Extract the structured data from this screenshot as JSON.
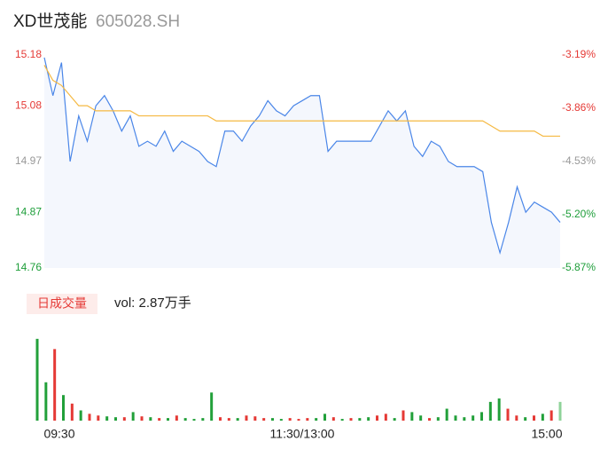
{
  "chart_data": [
    {
      "type": "line",
      "title": "XD世茂能",
      "subtitle": "605028.SH",
      "categories": [
        "09:30",
        null,
        null,
        null,
        null,
        null,
        null,
        null,
        null,
        null,
        null,
        null,
        null,
        null,
        null,
        null,
        null,
        null,
        null,
        null,
        null,
        null,
        null,
        null,
        null,
        null,
        null,
        null,
        null,
        null,
        "11:30/13:00",
        null,
        null,
        null,
        null,
        null,
        null,
        null,
        null,
        null,
        null,
        null,
        null,
        null,
        null,
        null,
        null,
        null,
        null,
        null,
        null,
        null,
        null,
        null,
        null,
        null,
        null,
        null,
        null,
        null,
        "15:00"
      ],
      "series": [
        {
          "name": "price",
          "color": "#4a86e8",
          "values": [
            15.175,
            15.1,
            15.165,
            14.97,
            15.06,
            15.01,
            15.08,
            15.1,
            15.07,
            15.03,
            15.06,
            15.0,
            15.01,
            15.0,
            15.03,
            14.99,
            15.01,
            15.0,
            14.99,
            14.97,
            14.96,
            15.03,
            15.03,
            15.01,
            15.04,
            15.06,
            15.09,
            15.07,
            15.06,
            15.08,
            15.09,
            15.1,
            15.1,
            14.99,
            15.01,
            15.01,
            15.01,
            15.01,
            15.01,
            15.04,
            15.07,
            15.05,
            15.07,
            15.0,
            14.98,
            15.01,
            15.0,
            14.97,
            14.96,
            14.96,
            14.96,
            14.95,
            14.85,
            14.79,
            14.85,
            14.92,
            14.87,
            14.89,
            14.88,
            14.87,
            14.85
          ]
        },
        {
          "name": "average",
          "color": "#f5b942",
          "values": [
            15.16,
            15.13,
            15.12,
            15.1,
            15.08,
            15.08,
            15.07,
            15.07,
            15.07,
            15.07,
            15.07,
            15.06,
            15.06,
            15.06,
            15.06,
            15.06,
            15.06,
            15.06,
            15.06,
            15.06,
            15.05,
            15.05,
            15.05,
            15.05,
            15.05,
            15.05,
            15.05,
            15.05,
            15.05,
            15.05,
            15.05,
            15.05,
            15.05,
            15.05,
            15.05,
            15.05,
            15.05,
            15.05,
            15.05,
            15.05,
            15.05,
            15.05,
            15.05,
            15.05,
            15.05,
            15.05,
            15.05,
            15.05,
            15.05,
            15.05,
            15.05,
            15.05,
            15.04,
            15.03,
            15.03,
            15.03,
            15.03,
            15.03,
            15.02,
            15.02,
            15.02
          ]
        }
      ],
      "ylim": [
        14.76,
        15.18
      ],
      "yticks": [
        15.18,
        15.08,
        14.97,
        14.87,
        14.76
      ],
      "ytick_colors": [
        "#e53935",
        "#e53935",
        "#999999",
        "#1e9e3a",
        "#1e9e3a"
      ],
      "y2lim": [
        -5.87,
        -3.19
      ],
      "y2ticks": [
        {
          "value": -3.19,
          "label": "-3.19%"
        },
        {
          "value": -3.86,
          "label": "-3.86%"
        },
        {
          "value": -4.53,
          "label": "-4.53%"
        },
        {
          "value": -5.2,
          "label": "-5.20%"
        },
        {
          "value": -5.87,
          "label": "-5.87%"
        }
      ],
      "area_color": "#f4f7fd"
    },
    {
      "type": "bar",
      "title": "日成交量",
      "subtitle": "vol: 2.87万手",
      "values": [
        96,
        45,
        84,
        30,
        20,
        12,
        8,
        6,
        5,
        4,
        4,
        10,
        5,
        4,
        3,
        3,
        6,
        3,
        2,
        3,
        33,
        4,
        3,
        3,
        6,
        5,
        3,
        3,
        2,
        3,
        2,
        3,
        3,
        8,
        4,
        2,
        3,
        3,
        4,
        6,
        8,
        3,
        12,
        10,
        6,
        3,
        4,
        14,
        6,
        4,
        6,
        10,
        22,
        26,
        14,
        6,
        4,
        6,
        8,
        12,
        22
      ],
      "colors": [
        "#22a03a",
        "#22a03a",
        "#e53935",
        "#22a03a",
        "#e53935",
        "#22a03a",
        "#e53935",
        "#e53935",
        "#22a03a",
        "#22a03a",
        "#e53935",
        "#22a03a",
        "#e53935",
        "#22a03a",
        "#e53935",
        "#22a03a",
        "#e53935",
        "#22a03a",
        "#22a03a",
        "#22a03a",
        "#22a03a",
        "#e53935",
        "#e53935",
        "#22a03a",
        "#e53935",
        "#e53935",
        "#e53935",
        "#22a03a",
        "#22a03a",
        "#e53935",
        "#e53935",
        "#e53935",
        "#22a03a",
        "#22a03a",
        "#e53935",
        "#22a03a",
        "#e53935",
        "#22a03a",
        "#22a03a",
        "#e53935",
        "#e53935",
        "#22a03a",
        "#e53935",
        "#22a03a",
        "#22a03a",
        "#e53935",
        "#22a03a",
        "#22a03a",
        "#22a03a",
        "#22a03a",
        "#22a03a",
        "#22a03a",
        "#22a03a",
        "#22a03a",
        "#e53935",
        "#e53935",
        "#22a03a",
        "#e53935",
        "#22a03a",
        "#e53935",
        "#8fd39a"
      ],
      "ylim": [
        0,
        100
      ]
    }
  ]
}
